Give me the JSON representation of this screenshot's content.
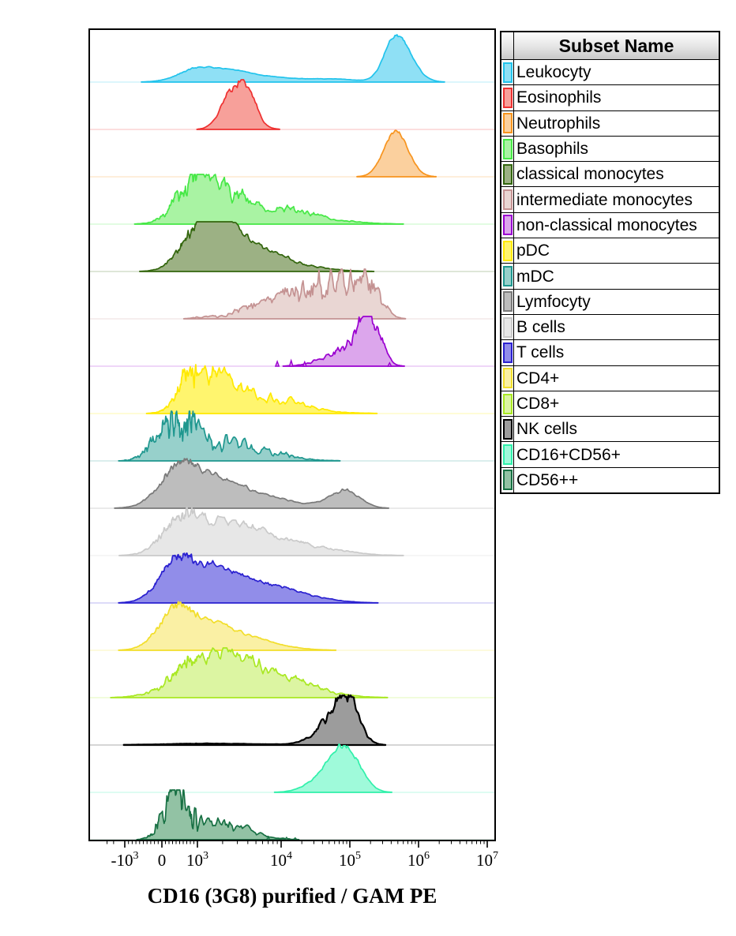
{
  "legend": {
    "header": "Subset Name"
  },
  "chart_data": {
    "type": "area",
    "subtype": "ridgeline-flow-histograms",
    "title": "",
    "xlabel": "CD16 (3G8) purified / GAM PE",
    "ylabel": "",
    "x_scale": "biexponential",
    "grid": false,
    "legend_position": "right",
    "x_ticks": [
      {
        "base": "-10",
        "exp": "3",
        "v": -1000
      },
      {
        "base": "0",
        "v": 0
      },
      {
        "base": "10",
        "exp": "3",
        "v": 1000
      },
      {
        "base": "10",
        "exp": "4",
        "v": 10000
      },
      {
        "base": "10",
        "exp": "5",
        "v": 100000
      },
      {
        "base": "10",
        "exp": "6",
        "v": 1000000
      },
      {
        "base": "10",
        "exp": "7",
        "v": 10000000
      }
    ],
    "axis_anchors": [
      {
        "v": -1000,
        "x": 158
      },
      {
        "v": 0,
        "x": 205
      },
      {
        "v": 1000,
        "x": 250
      },
      {
        "v": 10000,
        "x": 356
      },
      {
        "v": 100000,
        "x": 443
      },
      {
        "v": 1000000,
        "x": 530
      },
      {
        "v": 10000000,
        "x": 617
      }
    ],
    "series": [
      {
        "name": "Leukocyty",
        "stroke": "#22C3EC",
        "fill": "#8FE0F5",
        "rough": 0.06,
        "peaks": [
          {
            "center": 1200,
            "sigma_left": 0.55,
            "sigma_right": 0.5,
            "height": 0.29
          },
          {
            "center": 6000,
            "sigma_left": 0.8,
            "sigma_right": 0.8,
            "height": 0.035
          },
          {
            "center": 60000,
            "sigma_left": 0.45,
            "sigma_right": 0.3,
            "height": 0.05
          },
          {
            "center": 480000,
            "sigma_left": 0.17,
            "sigma_right": 0.21,
            "height": 1.0
          }
        ]
      },
      {
        "name": "Eosinophils",
        "stroke": "#EE3030",
        "fill": "#F7A09A",
        "rough": 0.18,
        "peaks": [
          {
            "center": 3400,
            "sigma_left": 0.16,
            "sigma_right": 0.14,
            "height": 0.96
          },
          {
            "center": 2000,
            "sigma_left": 0.1,
            "sigma_right": 0.1,
            "height": 0.2
          }
        ]
      },
      {
        "name": "Neutrophils",
        "stroke": "#F7941E",
        "fill": "#FBD09E",
        "rough": 0.06,
        "peaks": [
          {
            "center": 460000,
            "sigma_left": 0.17,
            "sigma_right": 0.18,
            "height": 0.97
          }
        ]
      },
      {
        "name": "Basophils",
        "stroke": "#46E846",
        "fill": "#A9F3A3",
        "rough": 0.32,
        "peaks": [
          {
            "center": 900,
            "sigma_left": 0.5,
            "sigma_right": 0.35,
            "height": 0.85
          },
          {
            "center": 2000,
            "sigma_left": 0.25,
            "sigma_right": 0.8,
            "height": 0.45
          },
          {
            "center": 15000,
            "sigma_left": 0.6,
            "sigma_right": 0.5,
            "height": 0.05
          }
        ]
      },
      {
        "name": "classical monocytes",
        "stroke": "#33660D",
        "fill": "#9CB184",
        "rough": 0.18,
        "peaks": [
          {
            "center": 1100,
            "sigma_left": 0.5,
            "sigma_right": 0.35,
            "height": 0.9
          },
          {
            "center": 2600,
            "sigma_left": 0.3,
            "sigma_right": 0.55,
            "height": 0.45
          },
          {
            "center": 15000,
            "sigma_left": 0.4,
            "sigma_right": 0.5,
            "height": 0.05
          }
        ]
      },
      {
        "name": "intermediate monocytes",
        "stroke": "#C49292",
        "fill": "#E9D6D3",
        "rough": 0.5,
        "peaks": [
          {
            "center": 9000,
            "sigma_left": 0.45,
            "sigma_right": 0.3,
            "height": 0.35
          },
          {
            "center": 40000,
            "sigma_left": 0.3,
            "sigma_right": 0.25,
            "height": 0.75
          },
          {
            "center": 120000,
            "sigma_left": 0.2,
            "sigma_right": 0.2,
            "height": 0.75
          },
          {
            "center": 220000,
            "sigma_left": 0.12,
            "sigma_right": 0.15,
            "height": 0.45
          }
        ]
      },
      {
        "name": "non-classical monocytes",
        "stroke": "#9A00D0",
        "fill": "#DCA6EC",
        "rough": 0.32,
        "peaks": [
          {
            "center": 200000,
            "sigma_left": 0.2,
            "sigma_right": 0.15,
            "height": 0.95
          },
          {
            "center": 80000,
            "sigma_left": 0.3,
            "sigma_right": 0.25,
            "height": 0.3
          }
        ],
        "spikes": [
          {
            "v": 9000,
            "h": 0.1
          },
          {
            "v": 14000,
            "h": 0.12
          },
          {
            "v": 22000,
            "h": 0.09
          },
          {
            "v": 380000,
            "h": 0.07
          }
        ]
      },
      {
        "name": "pDC",
        "stroke": "#FFE900",
        "fill": "#FFF56E",
        "rough": 0.38,
        "peaks": [
          {
            "center": 900,
            "sigma_left": 0.4,
            "sigma_right": 0.35,
            "height": 0.9
          },
          {
            "center": 2200,
            "sigma_left": 0.3,
            "sigma_right": 0.7,
            "height": 0.3
          },
          {
            "center": 9000,
            "sigma_left": 0.25,
            "sigma_right": 0.25,
            "height": 0.07
          },
          {
            "center": 20000,
            "sigma_left": 0.15,
            "sigma_right": 0.2,
            "height": 0.05
          }
        ]
      },
      {
        "name": "mDC",
        "stroke": "#1F978F",
        "fill": "#97D0CB",
        "rough": 0.5,
        "peaks": [
          {
            "center": 300,
            "sigma_left": 0.45,
            "sigma_right": 0.4,
            "height": 0.85
          },
          {
            "center": 900,
            "sigma_left": 0.3,
            "sigma_right": 0.5,
            "height": 0.55
          },
          {
            "center": 3500,
            "sigma_left": 0.4,
            "sigma_right": 0.5,
            "height": 0.12
          },
          {
            "center": 12000,
            "sigma_left": 0.1,
            "sigma_right": 0.1,
            "height": 0.06
          }
        ]
      },
      {
        "name": "Lymfocyty",
        "stroke": "#7A7A7A",
        "fill": "#BDBDBD",
        "rough": 0.12,
        "peaks": [
          {
            "center": 550,
            "sigma_left": 0.55,
            "sigma_right": 0.65,
            "height": 1.0
          },
          {
            "center": 4000,
            "sigma_left": 0.4,
            "sigma_right": 0.6,
            "height": 0.15
          },
          {
            "center": 90000,
            "sigma_left": 0.25,
            "sigma_right": 0.2,
            "height": 0.36
          }
        ]
      },
      {
        "name": "B cells",
        "stroke": "#CACACA",
        "fill": "#E7E7E7",
        "rough": 0.2,
        "peaks": [
          {
            "center": 650,
            "sigma_left": 0.55,
            "sigma_right": 0.75,
            "height": 0.9
          },
          {
            "center": 6000,
            "sigma_left": 0.4,
            "sigma_right": 0.7,
            "height": 0.22
          },
          {
            "center": 60000,
            "sigma_left": 0.4,
            "sigma_right": 0.3,
            "height": 0.04
          }
        ]
      },
      {
        "name": "T cells",
        "stroke": "#2A20D0",
        "fill": "#918DE9",
        "rough": 0.12,
        "peaks": [
          {
            "center": 480,
            "sigma_left": 0.5,
            "sigma_right": 0.8,
            "height": 1.0
          },
          {
            "center": 4000,
            "sigma_left": 0.4,
            "sigma_right": 0.6,
            "height": 0.18
          },
          {
            "center": 20000,
            "sigma_left": 0.3,
            "sigma_right": 0.4,
            "height": 0.05
          }
        ]
      },
      {
        "name": "CD4+",
        "stroke": "#F2DE2A",
        "fill": "#FAF0A4",
        "rough": 0.12,
        "peaks": [
          {
            "center": 480,
            "sigma_left": 0.5,
            "sigma_right": 0.6,
            "height": 1.0
          },
          {
            "center": 2500,
            "sigma_left": 0.3,
            "sigma_right": 0.5,
            "height": 0.18
          }
        ]
      },
      {
        "name": "CD8+",
        "stroke": "#A9E822",
        "fill": "#DCF5A2",
        "rough": 0.25,
        "peaks": [
          {
            "center": 1800,
            "sigma_left": 0.8,
            "sigma_right": 0.65,
            "height": 0.92
          },
          {
            "center": 15000,
            "sigma_left": 0.4,
            "sigma_right": 0.5,
            "height": 0.1
          }
        ]
      },
      {
        "name": "NK cells",
        "stroke": "#000000",
        "fill": "#9C9C9C",
        "rough": 0.2,
        "peaks": [
          {
            "center": 90000,
            "sigma_left": 0.3,
            "sigma_right": 0.17,
            "height": 1.0
          },
          {
            "center": 1500,
            "sigma_left": 1.1,
            "sigma_right": 0.6,
            "height": 0.03
          }
        ]
      },
      {
        "name": "CD16+CD56+",
        "stroke": "#30F0AA",
        "fill": "#9FFADA",
        "rough": 0.1,
        "peaks": [
          {
            "center": 90000,
            "sigma_left": 0.2,
            "sigma_right": 0.2,
            "height": 0.93
          },
          {
            "center": 45000,
            "sigma_left": 0.25,
            "sigma_right": 0.15,
            "height": 0.3
          }
        ]
      },
      {
        "name": "CD56++",
        "stroke": "#177043",
        "fill": "#92C2A4",
        "rough": 0.55,
        "peaks": [
          {
            "center": 300,
            "sigma_left": 0.3,
            "sigma_right": 0.3,
            "height": 0.85
          },
          {
            "center": 900,
            "sigma_left": 0.25,
            "sigma_right": 0.4,
            "height": 0.45
          },
          {
            "center": 3000,
            "sigma_left": 0.2,
            "sigma_right": 0.3,
            "height": 0.08
          }
        ],
        "spikes": [
          {
            "v": 7000,
            "h": 0.05
          },
          {
            "v": 12000,
            "h": 0.05
          },
          {
            "v": 16000,
            "h": 0.04
          }
        ]
      }
    ]
  }
}
